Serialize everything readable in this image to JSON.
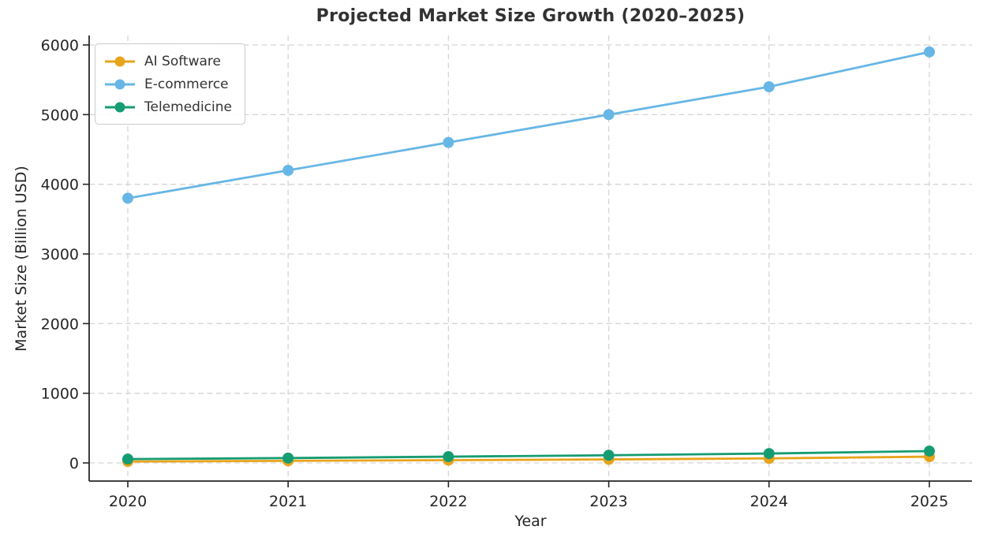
{
  "chart_data": {
    "type": "line",
    "title": "Projected Market Size Growth (2020–2025)",
    "xlabel": "Year",
    "ylabel": "Market Size (Billion USD)",
    "x": [
      2020,
      2021,
      2022,
      2023,
      2024,
      2025
    ],
    "xtick_labels": [
      "2020",
      "2021",
      "2022",
      "2023",
      "2024",
      "2025"
    ],
    "yticks": [
      0,
      1000,
      2000,
      3000,
      4000,
      5000,
      6000
    ],
    "ytick_labels": [
      "0",
      "1000",
      "2000",
      "3000",
      "4000",
      "5000",
      "6000"
    ],
    "ylim": [
      -250,
      6150
    ],
    "grid": true,
    "grid_style": "dashed",
    "legend_position": "upper-left",
    "series": [
      {
        "name": "AI Software",
        "color": "#E8A41D",
        "values": [
          20,
          30,
          40,
          50,
          65,
          90
        ]
      },
      {
        "name": "E-commerce",
        "color": "#67B6E5",
        "values": [
          3800,
          4200,
          4600,
          5000,
          5400,
          5900
        ]
      },
      {
        "name": "Telemedicine",
        "color": "#169C72",
        "values": [
          55,
          70,
          90,
          110,
          135,
          170
        ]
      }
    ]
  },
  "style_colors": {
    "axis": "#262626",
    "tick_text": "#262626",
    "grid": "#d5d5d5",
    "title_text": "#323232",
    "legend_border": "#cccccc",
    "background": "#ffffff"
  }
}
